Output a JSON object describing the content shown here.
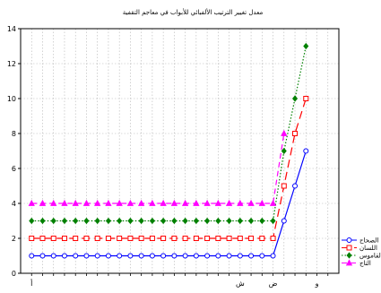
{
  "chart_data": {
    "type": "line",
    "title": "معدل تغيير الترتيب الألفبائي للأبواب في معاجم التقفية",
    "xlabel": "",
    "ylabel": "",
    "x": [
      1,
      2,
      3,
      4,
      5,
      6,
      7,
      8,
      9,
      10,
      11,
      12,
      13,
      14,
      15,
      16,
      17,
      18,
      19,
      20,
      21,
      22,
      23,
      24,
      25,
      26,
      27,
      28
    ],
    "x_tick_labels": [
      {
        "x": 1,
        "label": "أ"
      },
      {
        "x": 20,
        "label": "ش"
      },
      {
        "x": 23,
        "label": "ض"
      },
      {
        "x": 27,
        "label": "و"
      }
    ],
    "xlim": [
      0,
      29
    ],
    "ylim": [
      0,
      14
    ],
    "yticks": [
      0,
      2,
      4,
      6,
      8,
      10,
      12,
      14
    ],
    "grid": true,
    "legend_position": "bottom-right",
    "series": [
      {
        "name": "الصحاح",
        "color": "#0000ff",
        "marker": "circle",
        "dash": "solid",
        "x": [
          1,
          2,
          3,
          4,
          5,
          6,
          7,
          8,
          9,
          10,
          11,
          12,
          13,
          14,
          15,
          16,
          17,
          18,
          19,
          20,
          21,
          22,
          23,
          24,
          25,
          26
        ],
        "values": [
          1,
          1,
          1,
          1,
          1,
          1,
          1,
          1,
          1,
          1,
          1,
          1,
          1,
          1,
          1,
          1,
          1,
          1,
          1,
          1,
          1,
          1,
          1,
          3,
          5,
          7
        ]
      },
      {
        "name": "اللسان",
        "color": "#ff0000",
        "marker": "square",
        "dash": "long-dash",
        "x": [
          1,
          2,
          3,
          4,
          5,
          6,
          7,
          8,
          9,
          10,
          11,
          12,
          13,
          14,
          15,
          16,
          17,
          18,
          19,
          20,
          21,
          22,
          23,
          24,
          25,
          26
        ],
        "values": [
          2,
          2,
          2,
          2,
          2,
          2,
          2,
          2,
          2,
          2,
          2,
          2,
          2,
          2,
          2,
          2,
          2,
          2,
          2,
          2,
          2,
          2,
          2,
          5,
          8,
          10
        ]
      },
      {
        "name": "القاموس",
        "color": "#008000",
        "marker": "diamond",
        "dash": "dotted",
        "x": [
          1,
          2,
          3,
          4,
          5,
          6,
          7,
          8,
          9,
          10,
          11,
          12,
          13,
          14,
          15,
          16,
          17,
          18,
          19,
          20,
          21,
          22,
          23,
          24,
          25,
          26
        ],
        "values": [
          3,
          3,
          3,
          3,
          3,
          3,
          3,
          3,
          3,
          3,
          3,
          3,
          3,
          3,
          3,
          3,
          3,
          3,
          3,
          3,
          3,
          3,
          3,
          7,
          10,
          13
        ]
      },
      {
        "name": "التاج",
        "color": "#ff00ff",
        "marker": "triangle",
        "dash": "dash",
        "x": [
          1,
          2,
          3,
          4,
          5,
          6,
          7,
          8,
          9,
          10,
          11,
          12,
          13,
          14,
          15,
          16,
          17,
          18,
          19,
          20,
          21,
          22,
          23,
          24
        ],
        "values": [
          4,
          4,
          4,
          4,
          4,
          4,
          4,
          4,
          4,
          4,
          4,
          4,
          4,
          4,
          4,
          4,
          4,
          4,
          4,
          4,
          4,
          4,
          4,
          8
        ]
      }
    ]
  }
}
